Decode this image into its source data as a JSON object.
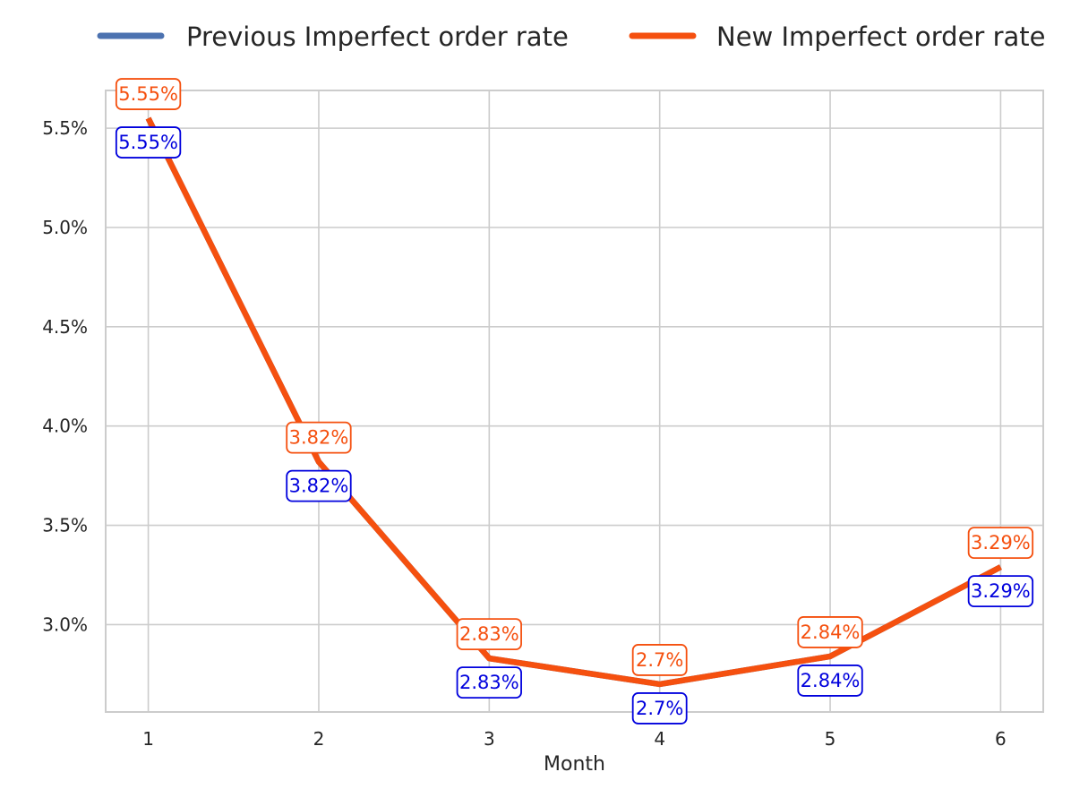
{
  "chart_data": {
    "type": "line",
    "title": "",
    "xlabel": "Month",
    "ylabel": "",
    "x": [
      1,
      2,
      3,
      4,
      5,
      6
    ],
    "x_tick_labels": [
      "1",
      "2",
      "3",
      "4",
      "5",
      "6"
    ],
    "y_ticks": [
      3.0,
      3.5,
      4.0,
      4.5,
      5.0,
      5.5
    ],
    "y_tick_labels": [
      "3.0%",
      "3.5%",
      "4.0%",
      "4.5%",
      "5.0%",
      "5.5%"
    ],
    "xlim": [
      0.75,
      6.25
    ],
    "ylim": [
      2.56,
      5.69
    ],
    "grid": true,
    "legend_position": "top",
    "series": [
      {
        "name": "Previous Imperfect order rate",
        "color": "#4c72b0",
        "label_color": "#0000dd",
        "label_position": "below",
        "values": [
          5.55,
          3.82,
          2.83,
          2.7,
          2.84,
          3.29
        ],
        "data_labels": [
          "5.55%",
          "3.82%",
          "2.83%",
          "2.7%",
          "2.84%",
          "3.29%"
        ]
      },
      {
        "name": "New Imperfect order rate",
        "color": "#f5500f",
        "label_color": "#f5500f",
        "label_position": "above",
        "values": [
          5.55,
          3.82,
          2.83,
          2.7,
          2.84,
          3.29
        ],
        "data_labels": [
          "5.55%",
          "3.82%",
          "2.83%",
          "2.7%",
          "2.84%",
          "3.29%"
        ]
      }
    ]
  }
}
